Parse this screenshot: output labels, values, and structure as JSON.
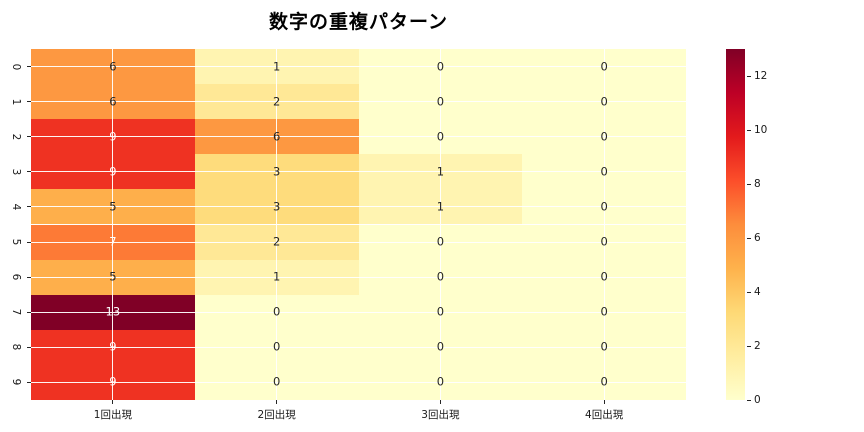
{
  "title": "数字の重複パターン",
  "chart_data": {
    "type": "heatmap",
    "title": "数字の重複パターン",
    "x_categories": [
      "1回出現",
      "2回出現",
      "3回出現",
      "4回出現"
    ],
    "y_categories": [
      "0",
      "1",
      "2",
      "3",
      "4",
      "5",
      "6",
      "7",
      "8",
      "9"
    ],
    "rows": [
      [
        6,
        1,
        0,
        0
      ],
      [
        6,
        2,
        0,
        0
      ],
      [
        9,
        6,
        0,
        0
      ],
      [
        9,
        3,
        1,
        0
      ],
      [
        5,
        3,
        1,
        0
      ],
      [
        7,
        2,
        0,
        0
      ],
      [
        5,
        1,
        0,
        0
      ],
      [
        13,
        0,
        0,
        0
      ],
      [
        9,
        0,
        0,
        0
      ],
      [
        9,
        0,
        0,
        0
      ]
    ],
    "vmin": 0,
    "vmax": 13,
    "colormap": "YlOrRd",
    "colormap_stops": [
      "#ffffcc",
      "#ffeda0",
      "#fed976",
      "#feb24c",
      "#fd8d3c",
      "#fc4e2a",
      "#e31a1c",
      "#bd0026",
      "#800026"
    ],
    "colorbar_ticks": [
      0,
      2,
      4,
      6,
      8,
      10,
      12
    ],
    "annotation_dark_color": "#262626",
    "annotation_light_color": "#ffffff",
    "grid": true,
    "legend_position": "colorbar-right"
  }
}
